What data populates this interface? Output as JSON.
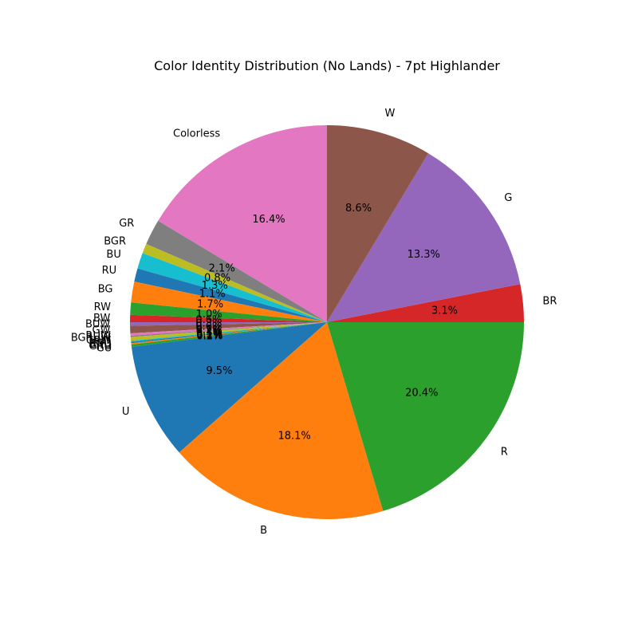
{
  "chart_data": {
    "type": "pie",
    "title": "Color Identity Distribution (No Lands) - 7pt Highlander",
    "start_angle_deg": 90,
    "direction": "counterclockwise",
    "slices": [
      {
        "label": "Colorless",
        "value": 16.4,
        "pct_label": "16.4%",
        "color": "#e377c2"
      },
      {
        "label": "GR",
        "value": 2.1,
        "pct_label": "2.1%",
        "color": "#7f7f7f"
      },
      {
        "label": "BGR",
        "value": 0.8,
        "pct_label": "0.8%",
        "color": "#bcbd22"
      },
      {
        "label": "BU",
        "value": 1.3,
        "pct_label": "1.3%",
        "color": "#17becf"
      },
      {
        "label": "RU",
        "value": 1.1,
        "pct_label": "1.1%",
        "color": "#1f77b4"
      },
      {
        "label": "BG",
        "value": 1.7,
        "pct_label": "1.7%",
        "color": "#ff7f0e"
      },
      {
        "label": "RW",
        "value": 1.0,
        "pct_label": "1.0%",
        "color": "#2ca02c"
      },
      {
        "label": "BW",
        "value": 0.6,
        "pct_label": "0.6%",
        "color": "#d62728"
      },
      {
        "label": "BUW",
        "value": 0.3,
        "pct_label": "0.3%",
        "color": "#9467bd"
      },
      {
        "label": "GW",
        "value": 0.6,
        "pct_label": "0.6%",
        "color": "#8c564b"
      },
      {
        "label": "RUW",
        "value": 0.2,
        "pct_label": "0.2%",
        "color": "#e377c2"
      },
      {
        "label": "BGRUW",
        "value": 0.1,
        "pct_label": "0.1%",
        "color": "#7f7f7f"
      },
      {
        "label": "GRW",
        "value": 0.3,
        "pct_label": "0.3%",
        "color": "#bcbd22"
      },
      {
        "label": "BGU",
        "value": 0.1,
        "pct_label": "0.1%",
        "color": "#17becf"
      },
      {
        "label": "BRU",
        "value": 0.1,
        "pct_label": "0.1%",
        "color": "#1f77b4"
      },
      {
        "label": "GRU",
        "value": 0.1,
        "pct_label": "0.1%",
        "color": "#ff7f0e"
      },
      {
        "label": "GU",
        "value": 0.2,
        "pct_label": "0.2%",
        "color": "#2ca02c"
      },
      {
        "label": "U",
        "value": 9.5,
        "pct_label": "9.5%",
        "color": "#1f77b4"
      },
      {
        "label": "B",
        "value": 18.1,
        "pct_label": "18.1%",
        "color": "#ff7f0e"
      },
      {
        "label": "R",
        "value": 20.4,
        "pct_label": "20.4%",
        "color": "#2ca02c"
      },
      {
        "label": "BR",
        "value": 3.1,
        "pct_label": "3.1%",
        "color": "#d62728"
      },
      {
        "label": "G",
        "value": 13.3,
        "pct_label": "13.3%",
        "color": "#9467bd"
      },
      {
        "label": "W",
        "value": 8.6,
        "pct_label": "8.6%",
        "color": "#8c564b"
      }
    ]
  }
}
